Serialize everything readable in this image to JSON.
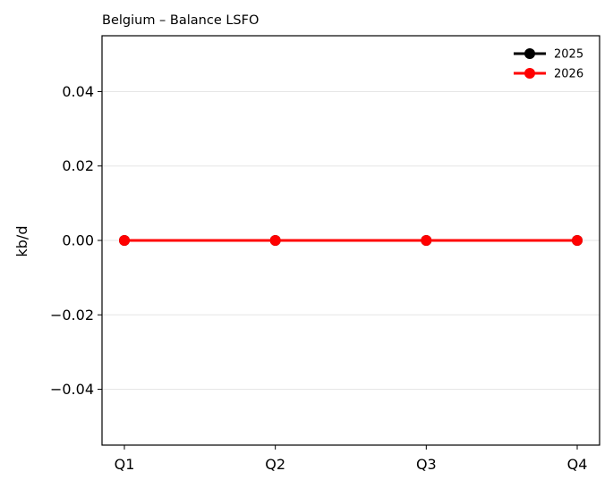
{
  "chart_data": {
    "type": "line",
    "title": "Belgium – Balance LSFO",
    "xlabel": "",
    "ylabel": "kb/d",
    "categories": [
      "Q1",
      "Q2",
      "Q3",
      "Q4"
    ],
    "series": [
      {
        "name": "2025",
        "values": [
          0.0,
          0.0,
          0.0,
          0.0
        ],
        "color": "#000000",
        "marker": "circle"
      },
      {
        "name": "2026",
        "values": [
          0.0,
          0.0,
          0.0,
          0.0
        ],
        "color": "#ff0000",
        "marker": "circle"
      }
    ],
    "ylim": [
      -0.055,
      0.055
    ],
    "yticks": [
      -0.04,
      -0.02,
      0.0,
      0.02,
      0.04
    ],
    "ytick_labels": [
      "−0.04",
      "−0.02",
      "0.00",
      "0.02",
      "0.04"
    ],
    "grid": "horizontal",
    "legend_position": "top-right"
  }
}
